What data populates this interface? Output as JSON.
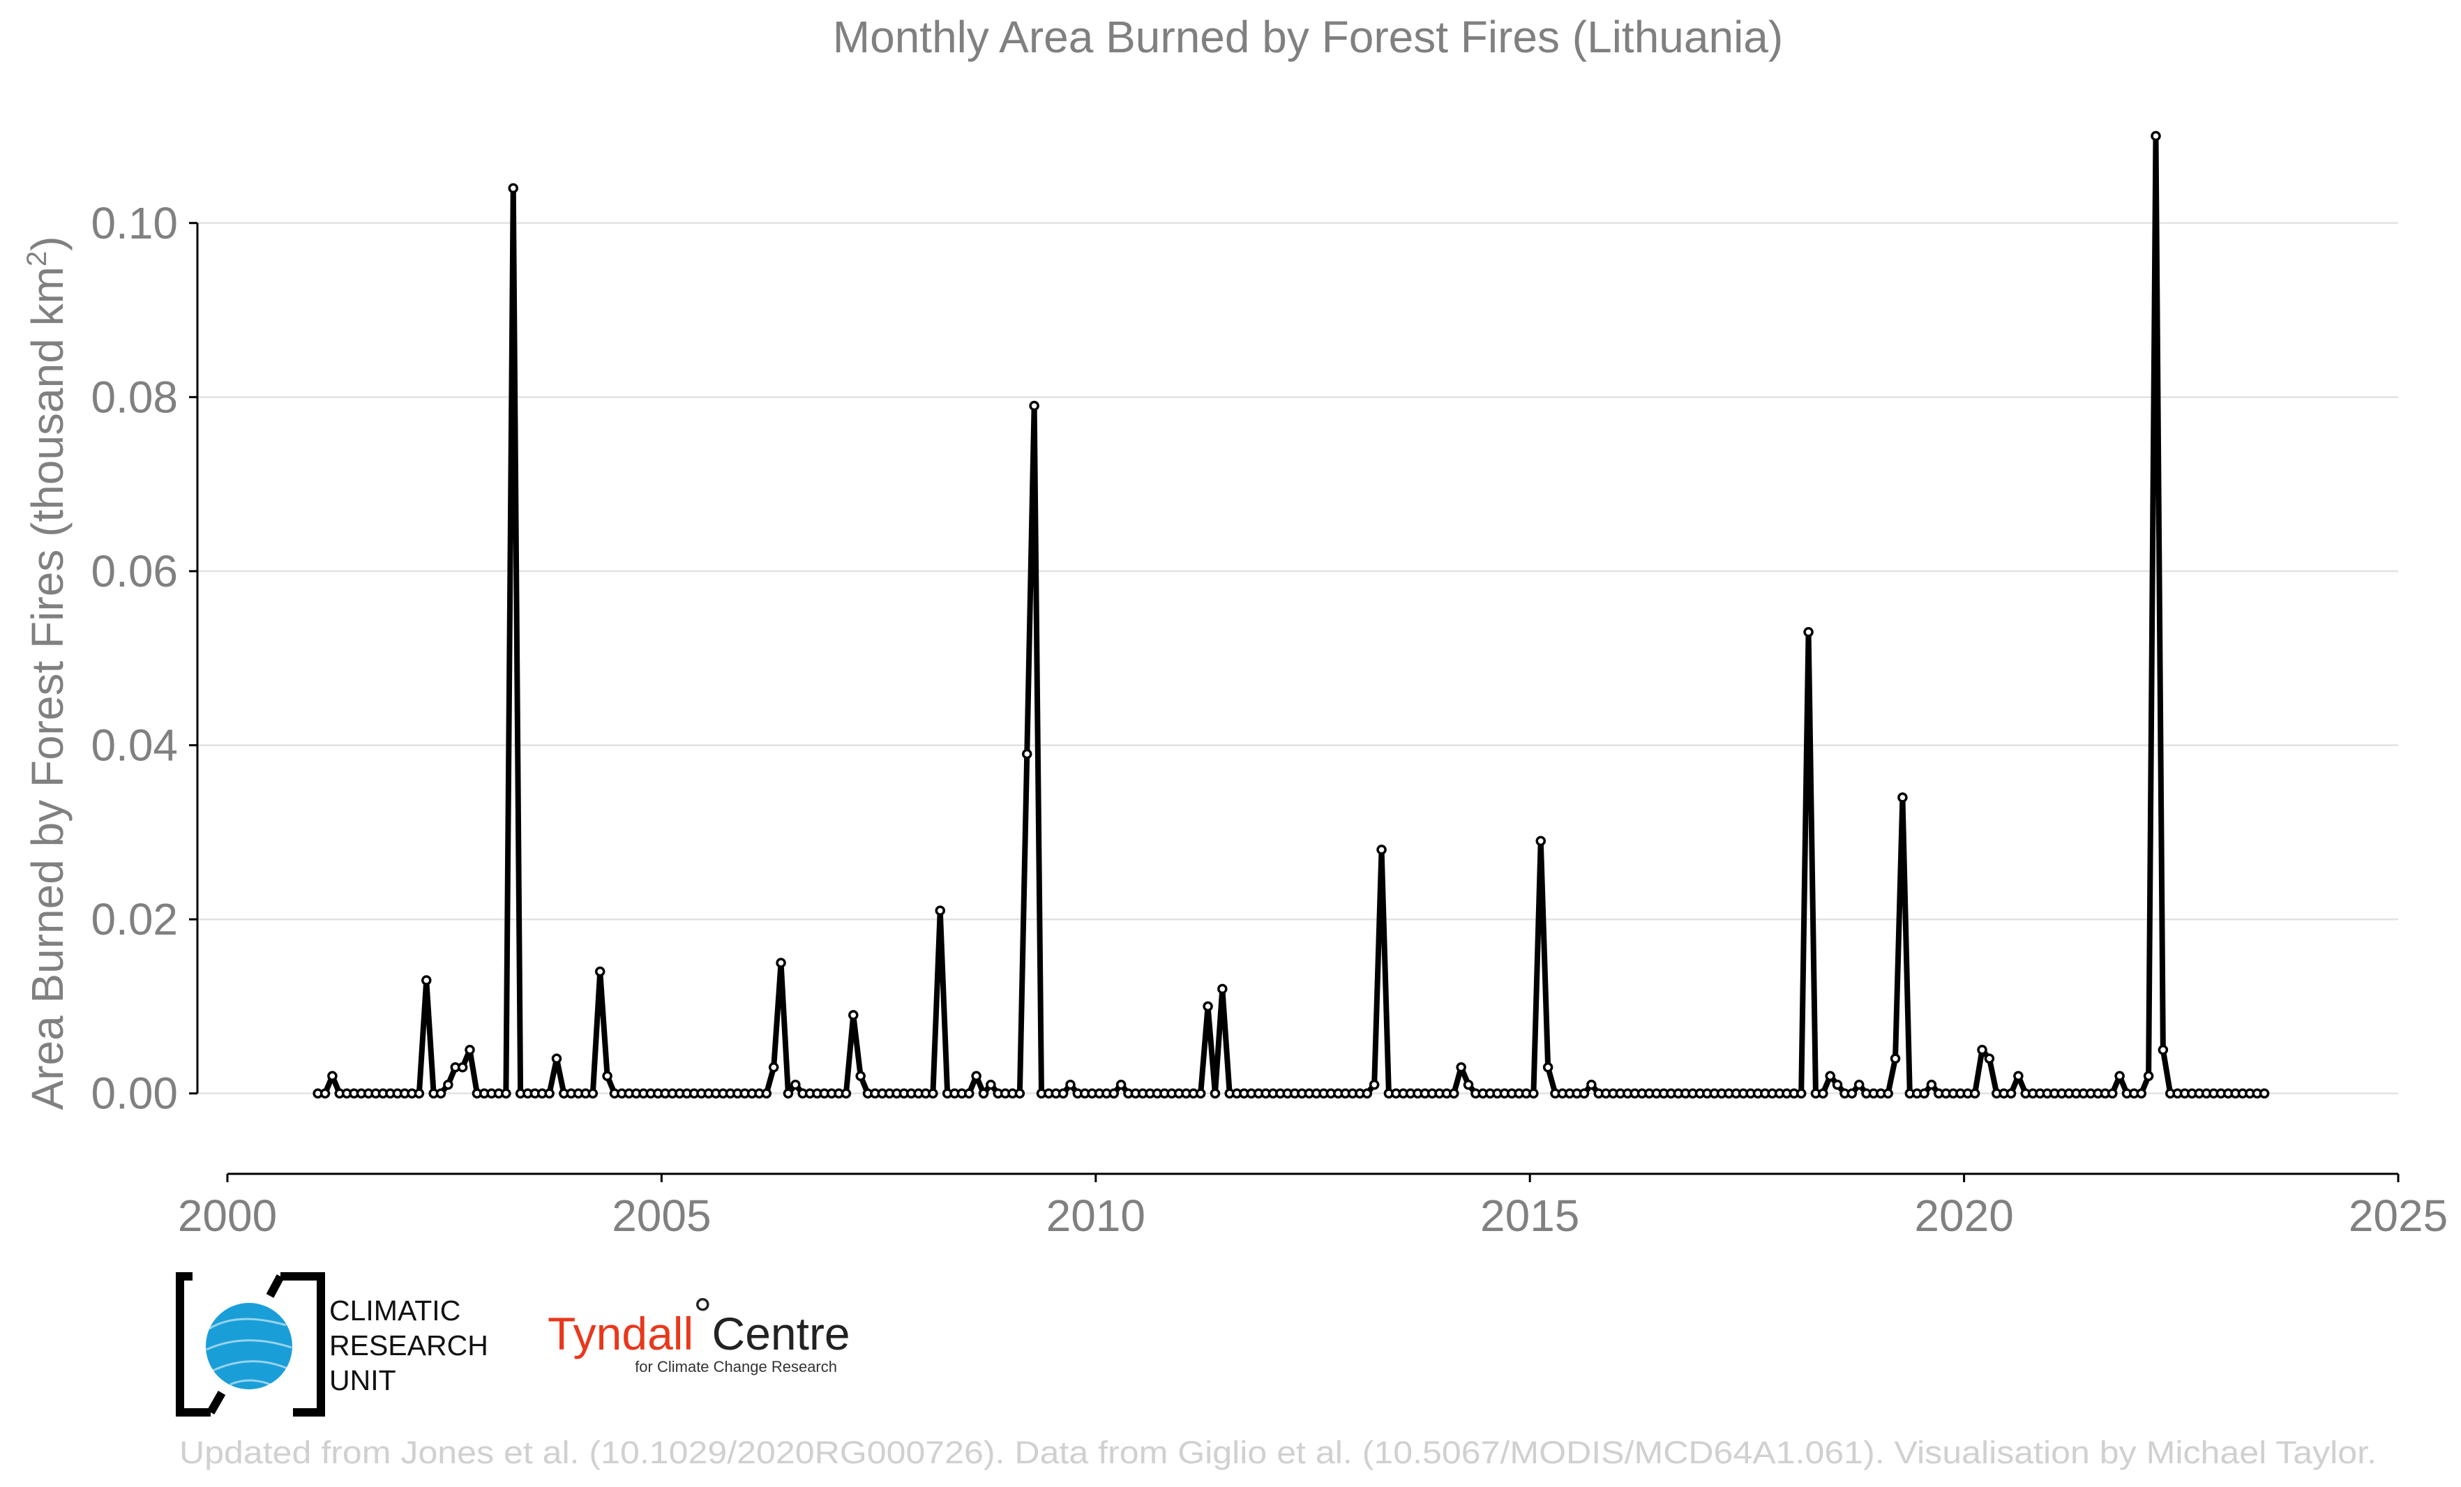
{
  "chart_data": {
    "type": "line",
    "title": "Monthly Area Burned by Forest Fires (Lithuania)",
    "ylabel": "Area Burned by Forest Fires (thousand km",
    "ylabel_superscript": "2",
    "ylabel_close": ")",
    "xlabel": "",
    "xlim": [
      2000,
      2025
    ],
    "ylim": [
      -0.009,
      0.112
    ],
    "x_ticks": [
      2000,
      2005,
      2010,
      2015,
      2020,
      2025
    ],
    "x_tick_labels": [
      "2000",
      "2005",
      "2010",
      "2015",
      "2020",
      "2025"
    ],
    "y_ticks": [
      0.0,
      0.02,
      0.04,
      0.06,
      0.08,
      0.1
    ],
    "y_tick_labels": [
      "0.00",
      "0.02",
      "0.04",
      "0.06",
      "0.08",
      "0.10"
    ],
    "grid": "horizontal",
    "legend": "none",
    "line_color": "#000000",
    "marker_fill": "#ffffff",
    "start": "2001-01",
    "end": "2023-06",
    "points": [
      [
        "2001-03",
        0.002
      ],
      [
        "2002-04",
        0.013
      ],
      [
        "2002-07",
        0.001
      ],
      [
        "2002-08",
        0.003
      ],
      [
        "2002-09",
        0.003
      ],
      [
        "2002-10",
        0.005
      ],
      [
        "2003-04",
        0.104
      ],
      [
        "2003-10",
        0.004
      ],
      [
        "2004-04",
        0.014
      ],
      [
        "2004-05",
        0.002
      ],
      [
        "2006-04",
        0.003
      ],
      [
        "2006-05",
        0.015
      ],
      [
        "2006-07",
        0.001
      ],
      [
        "2007-03",
        0.009
      ],
      [
        "2007-04",
        0.002
      ],
      [
        "2008-03",
        0.021
      ],
      [
        "2008-08",
        0.002
      ],
      [
        "2008-10",
        0.001
      ],
      [
        "2009-03",
        0.039
      ],
      [
        "2009-04",
        0.079
      ],
      [
        "2009-09",
        0.001
      ],
      [
        "2010-04",
        0.001
      ],
      [
        "2011-04",
        0.01
      ],
      [
        "2011-06",
        0.012
      ],
      [
        "2013-03",
        0.001
      ],
      [
        "2013-04",
        0.028
      ],
      [
        "2014-03",
        0.003
      ],
      [
        "2014-04",
        0.001
      ],
      [
        "2015-02",
        0.029
      ],
      [
        "2015-03",
        0.003
      ],
      [
        "2015-09",
        0.001
      ],
      [
        "2018-03",
        0.053
      ],
      [
        "2018-06",
        0.002
      ],
      [
        "2018-07",
        0.001
      ],
      [
        "2018-10",
        0.001
      ],
      [
        "2019-03",
        0.004
      ],
      [
        "2019-04",
        0.034
      ],
      [
        "2019-08",
        0.001
      ],
      [
        "2020-03",
        0.005
      ],
      [
        "2020-04",
        0.004
      ],
      [
        "2020-08",
        0.002
      ],
      [
        "2021-10",
        0.002
      ],
      [
        "2022-02",
        0.002
      ],
      [
        "2022-03",
        0.11
      ],
      [
        "2022-04",
        0.005
      ]
    ],
    "all_other_months_value": 0.0
  },
  "logos": {
    "cru_lines": [
      "CLIMATIC",
      "RESEARCH",
      "UNIT"
    ],
    "cru_globe_color": "#1a9ed8",
    "tyndall_word_1": "Tyndall",
    "tyndall_degree": "°",
    "tyndall_word_2": "Centre",
    "tyndall_subtitle": "for Climate Change Research",
    "tyndall_red": "#e8381c"
  },
  "credit": "Updated from Jones et al. (10.1029/2020RG000726). Data from Giglio et al. (10.5067/MODIS/MCD64A1.061). Visualisation by Michael Taylor."
}
